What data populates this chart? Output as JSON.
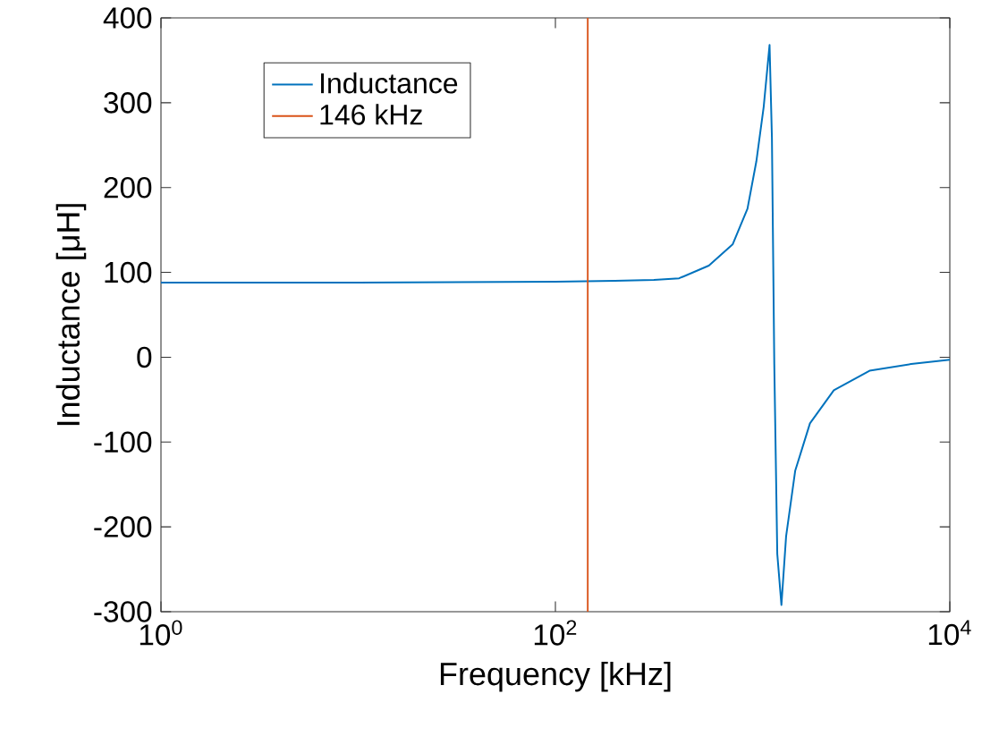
{
  "chart_data": {
    "type": "line",
    "xlabel": "Frequency [kHz]",
    "ylabel": "Inductance [μH]",
    "log": "x",
    "series": [
      {
        "name": "Inductance",
        "color": "#0072bd",
        "x": [
          1,
          10,
          100,
          200,
          316,
          424,
          600,
          792,
          942,
          1045,
          1138,
          1219,
          1253,
          1288,
          1334,
          1400,
          1479,
          1644,
          1954,
          2582,
          3917,
          6368,
          10000
        ],
        "values": [
          88,
          88,
          89,
          90,
          91,
          93,
          108,
          133,
          175,
          231,
          295,
          368,
          259,
          -8,
          -232,
          -292,
          -211,
          -134,
          -78,
          -39,
          -16,
          -8,
          -3
        ]
      },
      {
        "name": "146 kHz",
        "color": "#d95319",
        "x": [
          146,
          146
        ],
        "values": [
          -300,
          400
        ]
      }
    ],
    "xlim": [
      1,
      10000
    ],
    "ylim": [
      -300,
      400
    ],
    "xticks": [
      {
        "value": 1,
        "label": "10$^{0}$"
      },
      {
        "value": 100,
        "label": "10$^{2}$"
      },
      {
        "value": 10000,
        "label": "10$^{4}$"
      }
    ],
    "yticks": [
      -300,
      -200,
      -100,
      0,
      100,
      200,
      300,
      400
    ],
    "grid": false,
    "legend": "top left",
    "marker": "none",
    "line_style": "solid"
  }
}
